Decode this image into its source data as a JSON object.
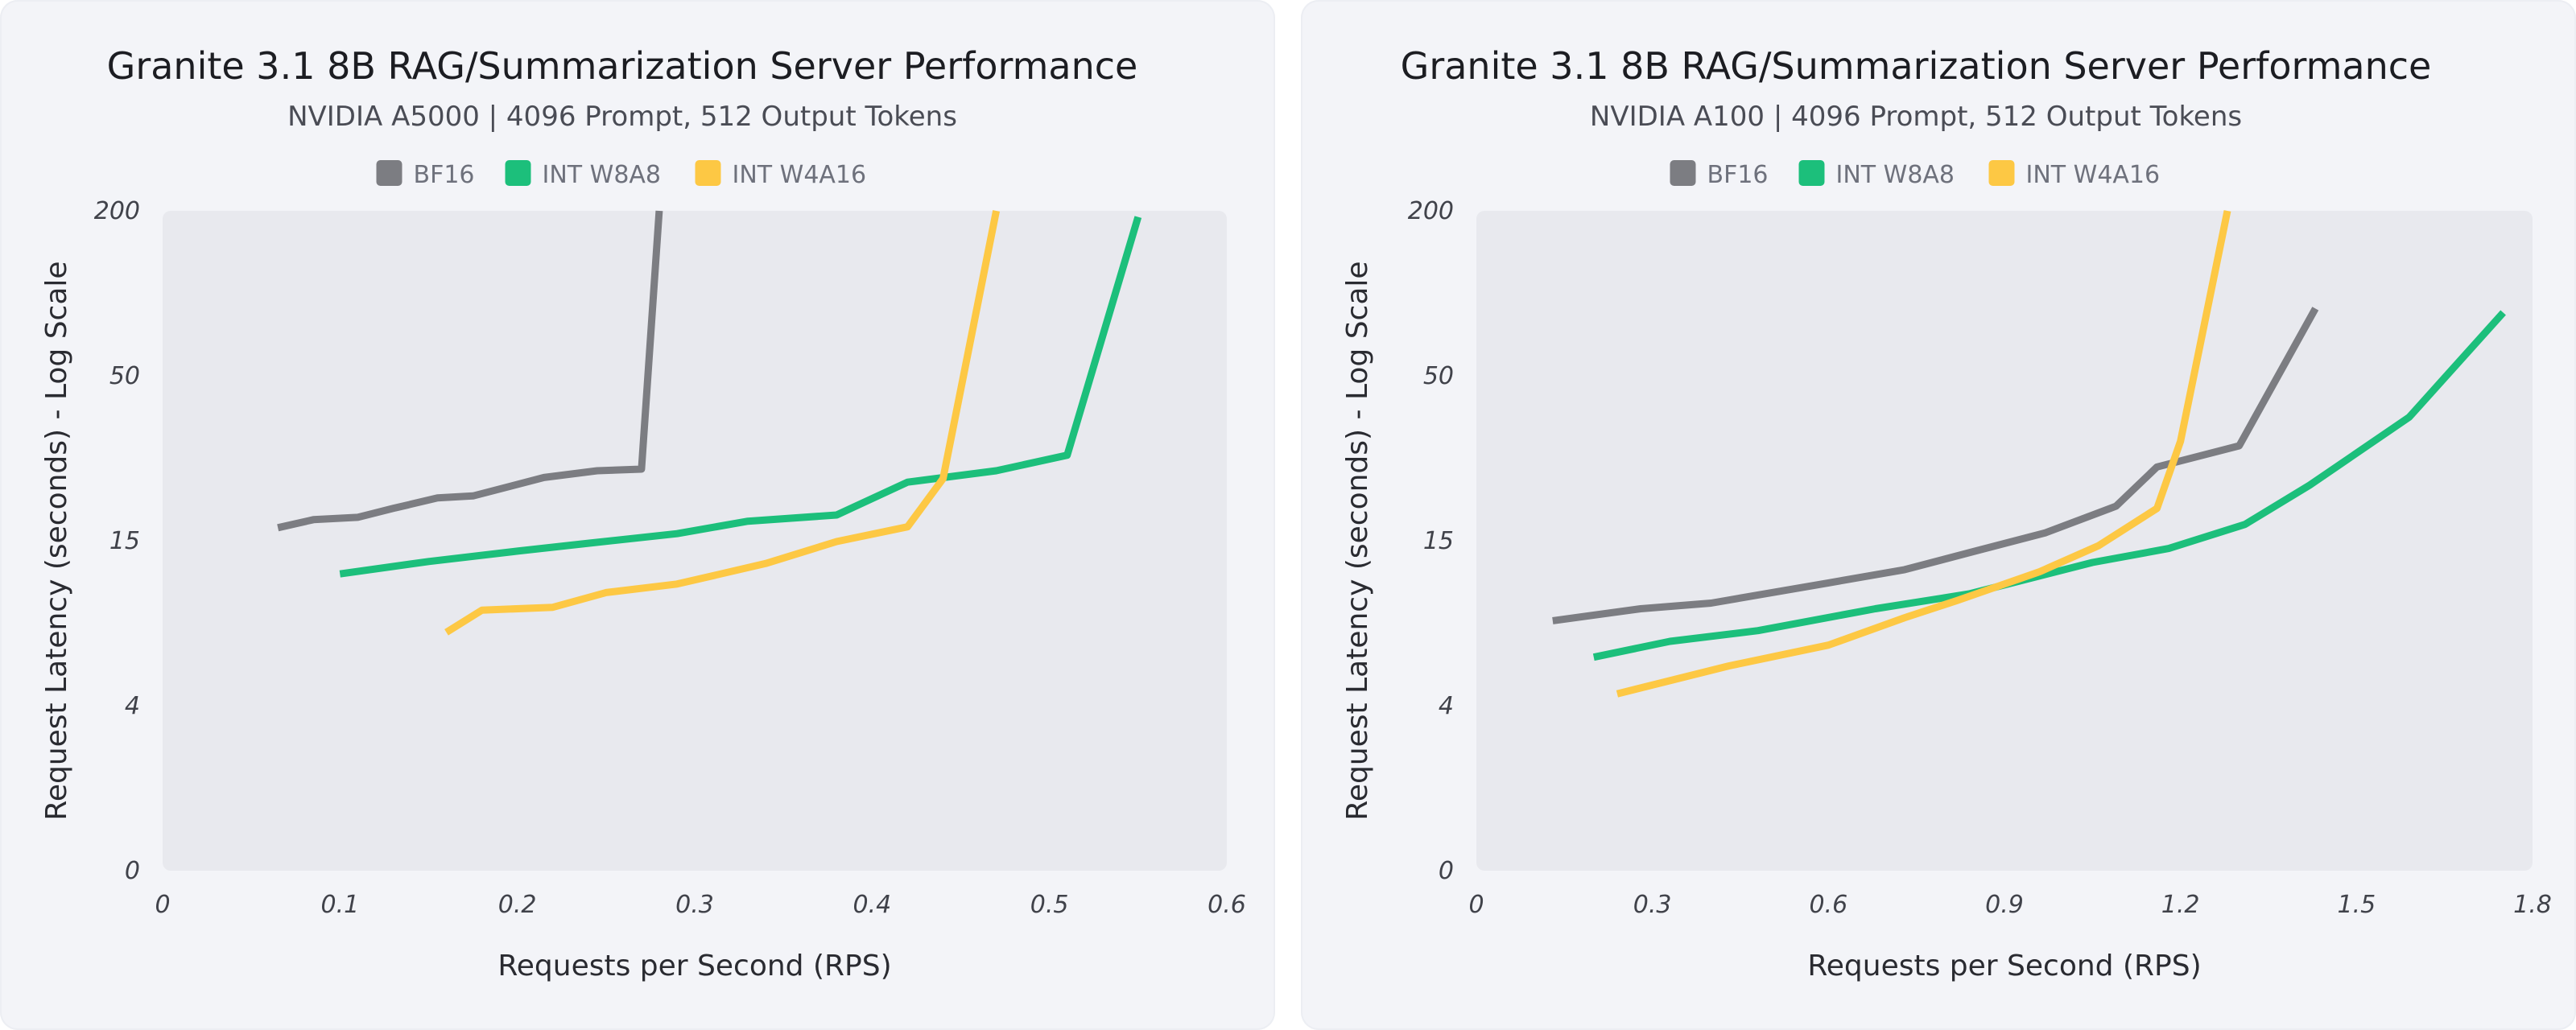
{
  "chart_data": [
    {
      "type": "line",
      "title": "Granite 3.1 8B RAG/Summarization Server Performance",
      "subtitle": "NVIDIA A5000 | 4096 Prompt, 512 Output Tokens",
      "xlabel": "Requests per Second (RPS)",
      "ylabel": "Request Latency (seconds) - Log Scale",
      "xlim": [
        0,
        0.6
      ],
      "x_ticks": [
        "0",
        "0.1",
        "0.2",
        "0.3",
        "0.4",
        "0.5",
        "0.6"
      ],
      "y_ticks": [
        "0",
        "4",
        "15",
        "50",
        "200"
      ],
      "y_scale": "log",
      "grid": false,
      "legend_position": "top-center",
      "series": [
        {
          "name": "BF16",
          "color": "#7c7d82",
          "points": [
            [
              0.065,
              16.5
            ],
            [
              0.085,
              17.5
            ],
            [
              0.11,
              17.8
            ],
            [
              0.13,
              19
            ],
            [
              0.155,
              20.5
            ],
            [
              0.175,
              20.8
            ],
            [
              0.215,
              23.8
            ],
            [
              0.245,
              25
            ],
            [
              0.27,
              25.3
            ],
            [
              0.28,
              200
            ]
          ]
        },
        {
          "name": "INT W8A8",
          "color": "#1cbf7b",
          "points": [
            [
              0.1,
              11.5
            ],
            [
              0.15,
              12.7
            ],
            [
              0.2,
              13.8
            ],
            [
              0.24,
              14.7
            ],
            [
              0.29,
              15.8
            ],
            [
              0.33,
              17.3
            ],
            [
              0.38,
              18.1
            ],
            [
              0.42,
              23
            ],
            [
              0.47,
              25
            ],
            [
              0.51,
              28
            ],
            [
              0.55,
              190
            ]
          ]
        },
        {
          "name": "INT W4A16",
          "color": "#fdc844",
          "points": [
            [
              0.16,
              7.2
            ],
            [
              0.18,
              8.6
            ],
            [
              0.22,
              8.8
            ],
            [
              0.25,
              9.9
            ],
            [
              0.29,
              10.6
            ],
            [
              0.34,
              12.5
            ],
            [
              0.38,
              14.9
            ],
            [
              0.42,
              16.6
            ],
            [
              0.44,
              23.6
            ],
            [
              0.47,
              200
            ]
          ]
        }
      ]
    },
    {
      "type": "line",
      "title": "Granite 3.1 8B RAG/Summarization Server Performance",
      "subtitle": "NVIDIA A100 | 4096 Prompt, 512 Output Tokens",
      "xlabel": "Requests per Second (RPS)",
      "ylabel": "Request Latency (seconds) - Log Scale",
      "xlim": [
        0,
        1.8
      ],
      "x_ticks": [
        "0",
        "0.3",
        "0.6",
        "0.9",
        "1.2",
        "1.5",
        "1.8"
      ],
      "y_ticks": [
        "0",
        "4",
        "15",
        "50",
        "200"
      ],
      "y_scale": "log",
      "grid": false,
      "legend_position": "top-center",
      "series": [
        {
          "name": "BF16",
          "color": "#7c7d82",
          "points": [
            [
              0.13,
              7.9
            ],
            [
              0.28,
              8.7
            ],
            [
              0.4,
              9.1
            ],
            [
              0.6,
              10.7
            ],
            [
              0.73,
              11.9
            ],
            [
              0.85,
              13.8
            ],
            [
              0.97,
              15.9
            ],
            [
              1.09,
              19.3
            ],
            [
              1.16,
              25.7
            ],
            [
              1.3,
              30
            ],
            [
              1.43,
              88
            ]
          ]
        },
        {
          "name": "INT W8A8",
          "color": "#1cbf7b",
          "points": [
            [
              0.2,
              5.9
            ],
            [
              0.33,
              6.7
            ],
            [
              0.48,
              7.3
            ],
            [
              0.68,
              8.7
            ],
            [
              0.84,
              9.8
            ],
            [
              1.05,
              12.6
            ],
            [
              1.18,
              14.1
            ],
            [
              1.31,
              16.9
            ],
            [
              1.42,
              22.5
            ],
            [
              1.59,
              37
            ],
            [
              1.75,
              85
            ]
          ]
        },
        {
          "name": "INT W4A16",
          "color": "#fdc844",
          "points": [
            [
              0.24,
              4.4
            ],
            [
              0.43,
              5.5
            ],
            [
              0.6,
              6.5
            ],
            [
              0.73,
              8.1
            ],
            [
              0.82,
              9.3
            ],
            [
              0.96,
              11.7
            ],
            [
              1.06,
              14.4
            ],
            [
              1.16,
              19
            ],
            [
              1.2,
              31
            ],
            [
              1.28,
              200
            ]
          ]
        }
      ]
    }
  ]
}
